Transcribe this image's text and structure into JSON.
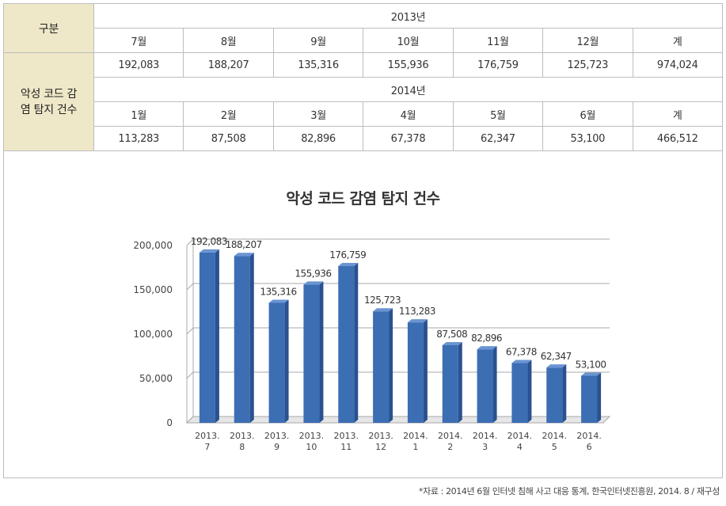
{
  "table": {
    "category_header": "구분",
    "row_label": "악성 코드 감염 탐지 건수",
    "blocks": [
      {
        "year": "2013년",
        "months": [
          "7월",
          "8월",
          "9월",
          "10월",
          "11월",
          "12월",
          "계"
        ],
        "values": [
          "192,083",
          "188,207",
          "135,316",
          "155,936",
          "176,759",
          "125,723",
          "974,024"
        ]
      },
      {
        "year": "2014년",
        "months": [
          "1월",
          "2월",
          "3월",
          "4월",
          "5월",
          "6월",
          "계"
        ],
        "values": [
          "113,283",
          "87,508",
          "82,896",
          "67,378",
          "62,347",
          "53,100",
          "466,512"
        ]
      }
    ]
  },
  "chart_data": {
    "type": "bar",
    "title": "악성 코드 감염 탐지 건수",
    "categories": [
      [
        "2013.",
        "7"
      ],
      [
        "2013.",
        "8"
      ],
      [
        "2013.",
        "9"
      ],
      [
        "2013.",
        "10"
      ],
      [
        "2013.",
        "11"
      ],
      [
        "2013.",
        "12"
      ],
      [
        "2014.",
        "1"
      ],
      [
        "2014.",
        "2"
      ],
      [
        "2014.",
        "3"
      ],
      [
        "2014.",
        "4"
      ],
      [
        "2014.",
        "5"
      ],
      [
        "2014.",
        "6"
      ]
    ],
    "values": [
      192083,
      188207,
      135316,
      155936,
      176759,
      125723,
      113283,
      87508,
      82896,
      67378,
      62347,
      53100
    ],
    "value_labels": [
      "192,083",
      "188,207",
      "135,316",
      "155,936",
      "176,759",
      "125,723",
      "113,283",
      "87,508",
      "82,896",
      "67,378",
      "62,347",
      "53,100"
    ],
    "yticks": [
      0,
      50000,
      100000,
      150000,
      200000
    ],
    "ytick_labels": [
      "0",
      "50,000",
      "100,000",
      "150,000",
      "200,000"
    ],
    "ylim": [
      0,
      200000
    ],
    "grid": true,
    "legend": "none",
    "bar_color": "#3c6eb4"
  },
  "source": "*자료 : 2014년 6월 인터넷 침해 사고 대응 통계, 한국인터넷진흥원, 2014. 8 / 재구성"
}
